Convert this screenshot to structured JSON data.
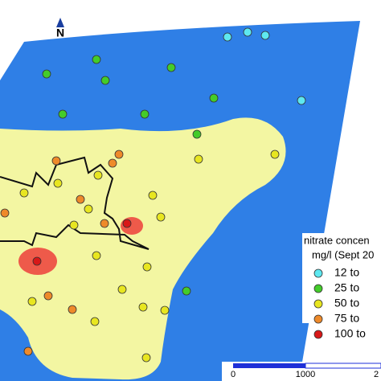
{
  "north": "N",
  "legend": {
    "title": "nitrate concen",
    "subtitle": "mg/l (Sept 20",
    "items": [
      {
        "label": "12 to",
        "color": "#5ee8f0"
      },
      {
        "label": "25 to",
        "color": "#44cc2a"
      },
      {
        "label": "50 to",
        "color": "#e8e620"
      },
      {
        "label": "75 to",
        "color": "#ee8a2a"
      },
      {
        "label": "100 to",
        "color": "#d81818"
      }
    ]
  },
  "scale_bar": {
    "labels": [
      "0",
      "1000",
      "2"
    ]
  }
}
